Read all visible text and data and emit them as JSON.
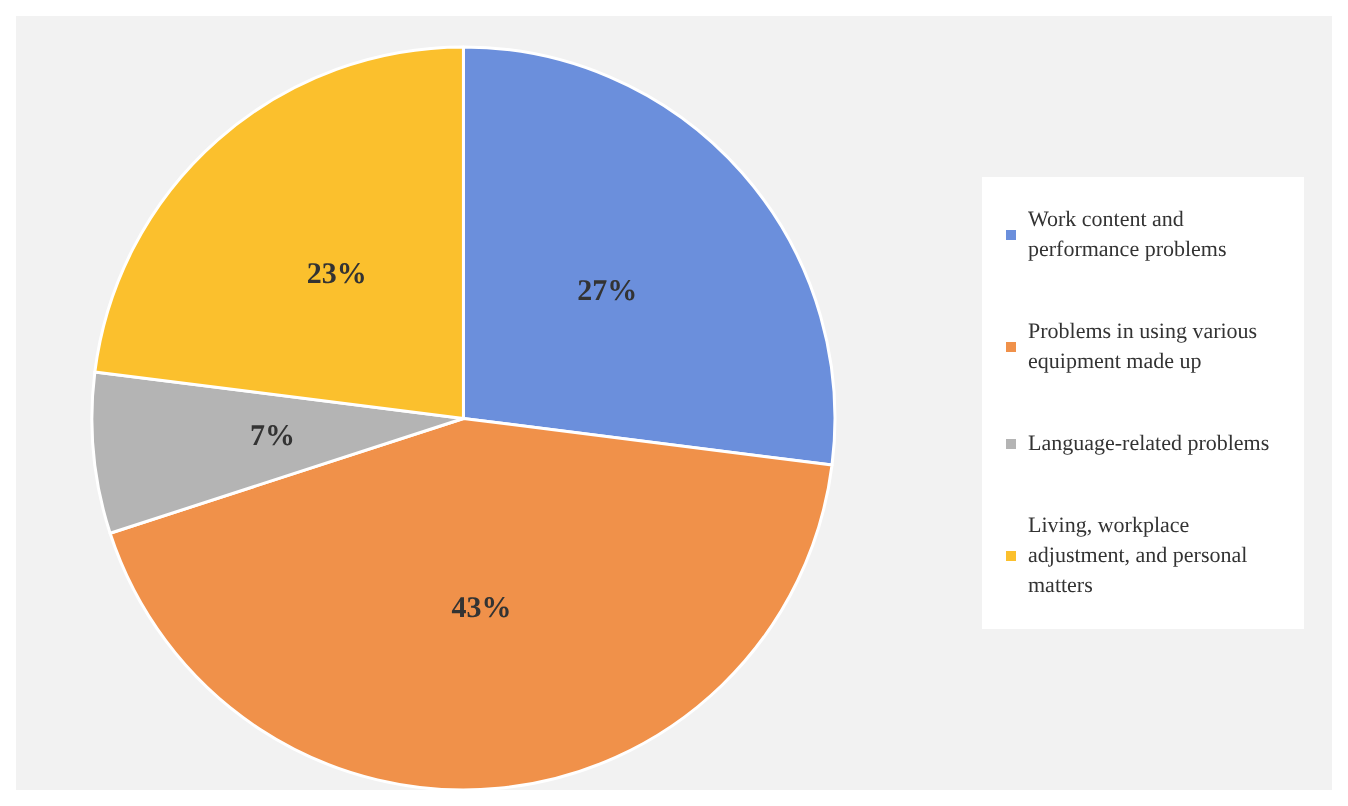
{
  "chart_data": {
    "type": "pie",
    "categories": [
      "Work content and performance problems",
      "Problems in using various equipment made up",
      "Language-related problems",
      "Living, workplace adjustment, and personal matters"
    ],
    "values": [
      27,
      43,
      7,
      23
    ],
    "colors": [
      "#6b8fdc",
      "#f0914a",
      "#b4b4b4",
      "#fbc02d"
    ],
    "value_labels": [
      "27%",
      "43%",
      "7%",
      "23%"
    ],
    "legend": "right"
  }
}
